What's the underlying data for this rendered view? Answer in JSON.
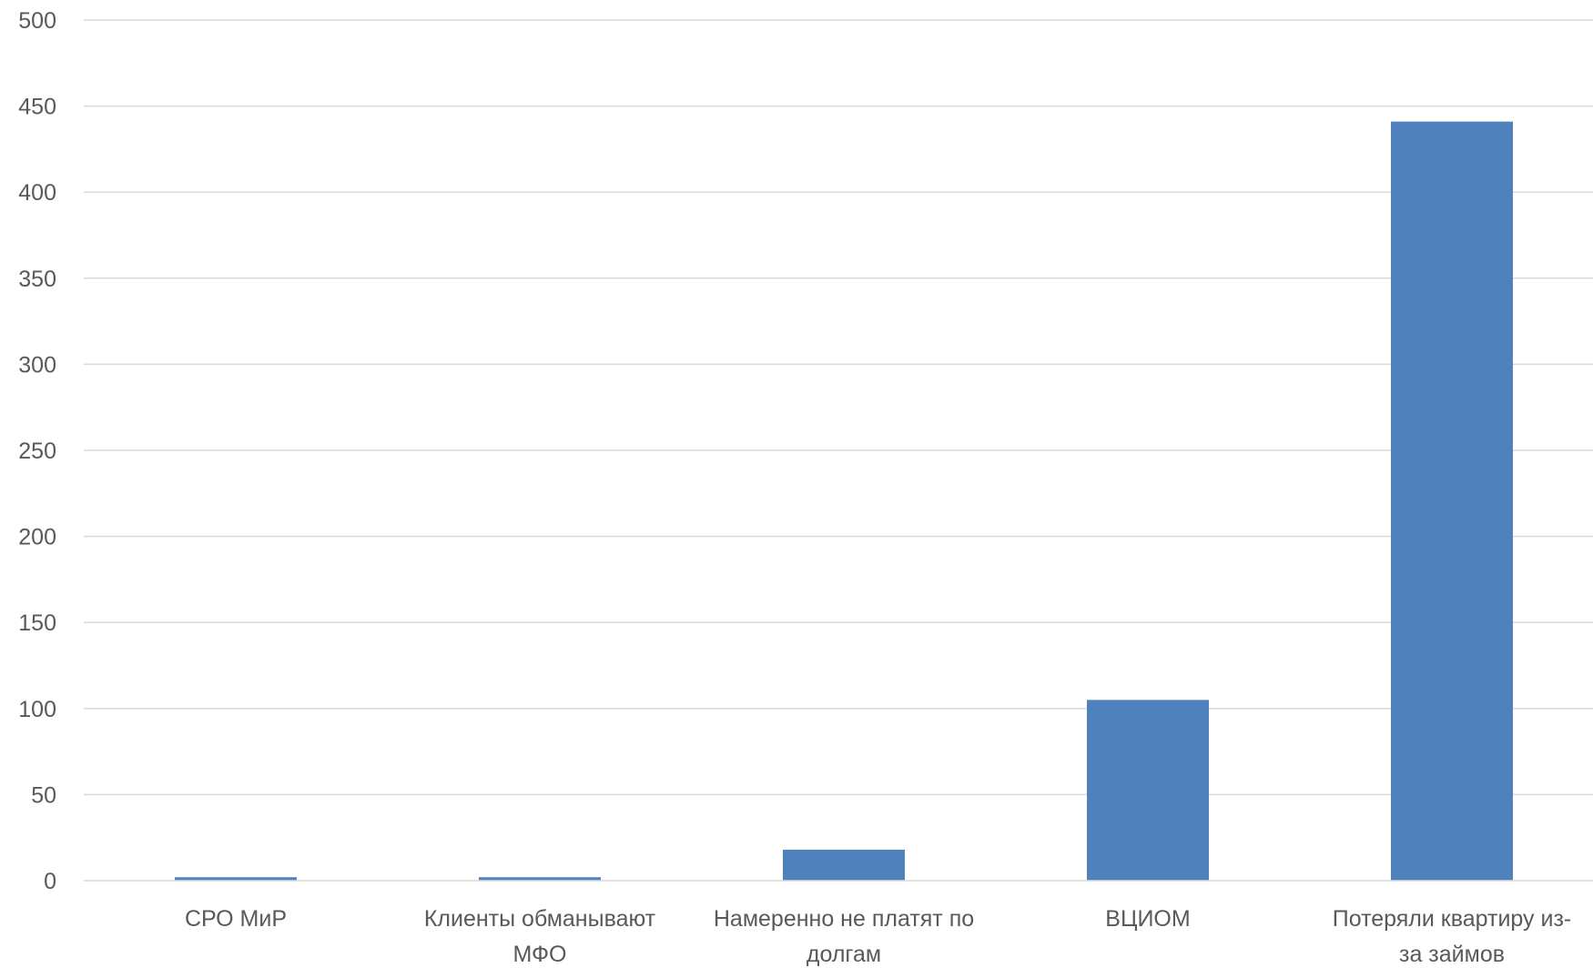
{
  "chart_data": {
    "type": "bar",
    "title": "",
    "xlabel": "",
    "ylabel": "",
    "ylim": [
      0,
      500
    ],
    "yticks": [
      0,
      50,
      100,
      150,
      200,
      250,
      300,
      350,
      400,
      450,
      500
    ],
    "yticks_text": [
      "0",
      "50",
      "100",
      "150",
      "200",
      "250",
      "300",
      "350",
      "400",
      "450",
      "500"
    ],
    "grid": true,
    "legend": "none",
    "bar_color": "#4f81bd",
    "categories": [
      "СРО МиР",
      "Клиенты обманывают МФО",
      "Намеренно не платят по долгам",
      "ВЦИОМ",
      "Потеряли квартиру из-за займов"
    ],
    "category_lines": [
      [
        "СРО МиР"
      ],
      [
        "Клиенты обманывают",
        "МФО"
      ],
      [
        "Намеренно не платят по",
        "долгам"
      ],
      [
        "ВЦИОМ"
      ],
      [
        "Потеряли квартиру из-",
        "за займов"
      ]
    ],
    "values": [
      2,
      2,
      18,
      105,
      441
    ]
  }
}
